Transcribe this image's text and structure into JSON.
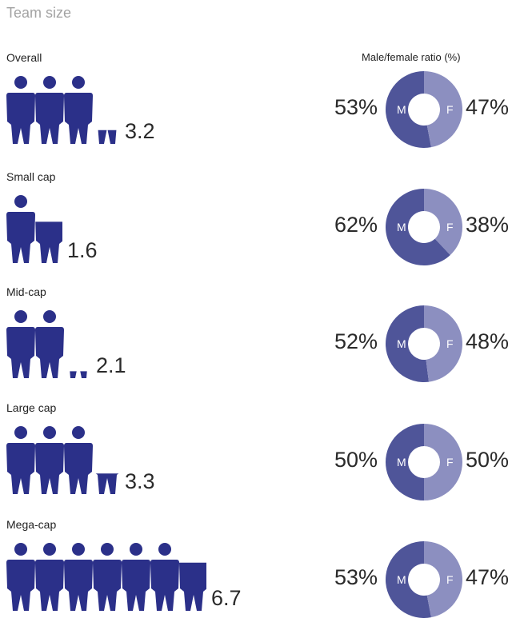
{
  "title": "Team size",
  "ratio_title": "Male/female ratio (%)",
  "male_letter": "M",
  "female_letter": "F",
  "colors": {
    "person": "#2b3089",
    "male": "#4f5599",
    "female": "#8c8fc0"
  },
  "rows": [
    {
      "label": "Overall",
      "team": "3.2",
      "male": "53%",
      "female": "47%"
    },
    {
      "label": "Small cap",
      "team": "1.6",
      "male": "62%",
      "female": "38%"
    },
    {
      "label": "Mid-cap",
      "team": "2.1",
      "male": "52%",
      "female": "48%"
    },
    {
      "label": "Large cap",
      "team": "3.3",
      "male": "50%",
      "female": "50%"
    },
    {
      "label": "Mega-cap",
      "team": "6.7",
      "male": "53%",
      "female": "47%"
    }
  ],
  "chart_data": {
    "type": "pictogram-and-donut",
    "categories": [
      "Overall",
      "Small cap",
      "Mid-cap",
      "Large cap",
      "Mega-cap"
    ],
    "team_size": [
      3.2,
      1.6,
      2.1,
      3.3,
      6.7
    ],
    "male_pct": [
      53,
      62,
      52,
      50,
      53
    ],
    "female_pct": [
      47,
      38,
      48,
      50,
      47
    ]
  }
}
